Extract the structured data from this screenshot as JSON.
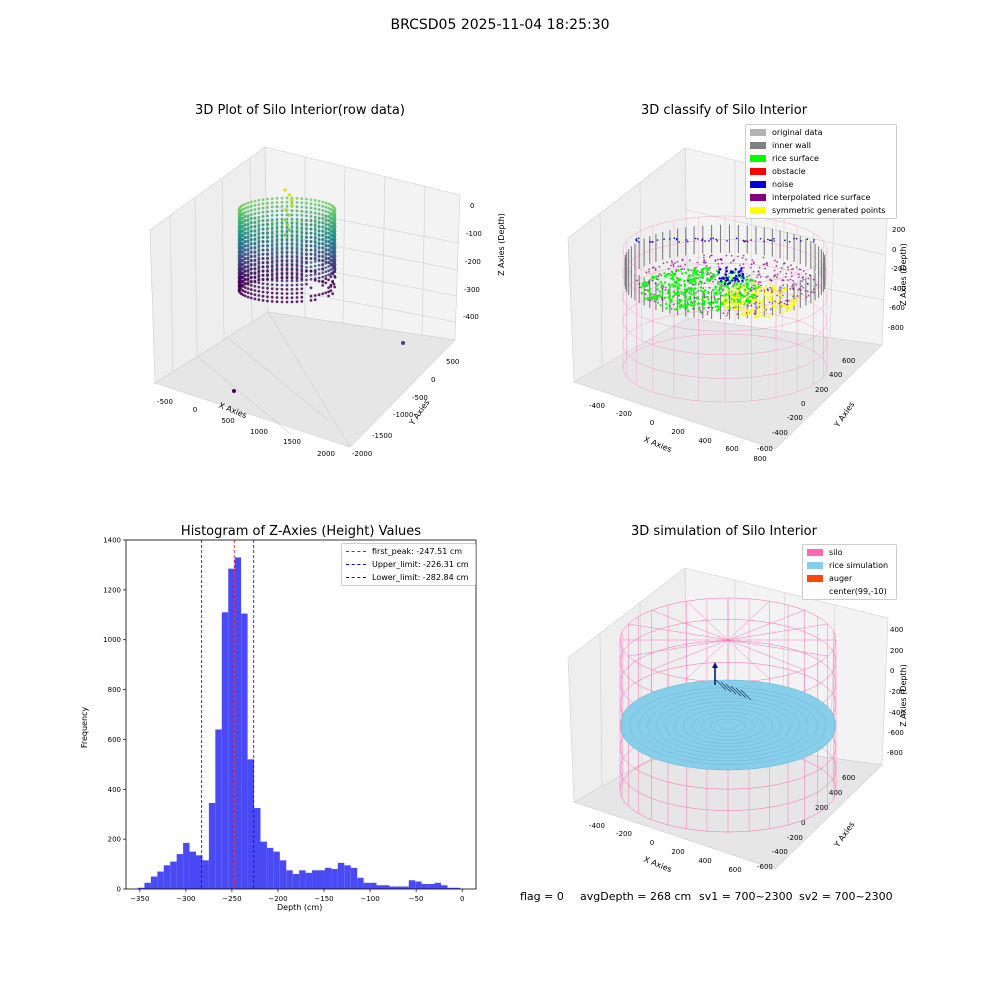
{
  "suptitle": "BRCSD05 2025-11-04 18:25:30",
  "colors": {
    "original": "#b3b3b3",
    "inner_wall": "#808080",
    "rice_surface": "#00ff00",
    "obstacle": "#ff0000",
    "noise": "#0000dd",
    "interpolated": "#800080",
    "symmetric": "#ffff00",
    "silo": "#ff69b4",
    "rice_sim": "#87ceeb",
    "auger": "#ff4500",
    "hist_bar": "#4a4af5"
  },
  "chart_data": [
    {
      "type": "scatter",
      "title": "3D Plot of Silo Interior(row data)",
      "xlabel": "X Axies",
      "ylabel": "Y Axies",
      "zlabel": "Z Axies (Depth)",
      "xticks": [
        "-500",
        "0",
        "500",
        "1000",
        "1500",
        "2000"
      ],
      "yticks": [
        "500",
        "0",
        "-500",
        "-1000",
        "-1500",
        "-2000"
      ],
      "zticks": [
        "0",
        "-100",
        "-200",
        "-300",
        "-400"
      ],
      "colormap": "viridis"
    },
    {
      "type": "scatter",
      "title": "3D classify of Silo Interior",
      "xlabel": "X Axies",
      "ylabel": "Y Axies",
      "zlabel": "Z Axies (Depth)",
      "xticks": [
        "-400",
        "-200",
        "0",
        "200",
        "400",
        "600",
        "800"
      ],
      "yticks": [
        "600",
        "400",
        "200",
        "0",
        "-200",
        "-400",
        "-600"
      ],
      "zticks": [
        "200",
        "0",
        "-200",
        "-400",
        "-600",
        "-800"
      ],
      "legend": [
        "original data",
        "inner wall",
        "rice surface",
        "obstacle",
        "noise",
        "interpolated rice surface",
        "symmetric generated points"
      ],
      "legend_placement": "top-right"
    },
    {
      "type": "bar",
      "title": "Histogram of Z-Axies (Height) Values",
      "xlabel": "Depth (cm)",
      "ylabel": "Frequency",
      "xlim": [
        -365,
        15
      ],
      "ylim": [
        0,
        1400
      ],
      "xticks": [
        -350,
        -300,
        -250,
        -200,
        -150,
        -100,
        -50,
        0
      ],
      "yticks": [
        0,
        200,
        400,
        600,
        800,
        1000,
        1200,
        1400
      ],
      "bin_start": -352,
      "bin_width": 7,
      "values": [
        5,
        25,
        50,
        70,
        95,
        110,
        140,
        185,
        150,
        135,
        115,
        345,
        640,
        1110,
        1285,
        1330,
        1105,
        520,
        325,
        190,
        165,
        150,
        115,
        75,
        60,
        75,
        65,
        75,
        75,
        85,
        80,
        105,
        95,
        85,
        45,
        25,
        25,
        15,
        15,
        10,
        10,
        10,
        35,
        30,
        20,
        20,
        25,
        15,
        5,
        5
      ],
      "lines": [
        {
          "label": "first_peak: -247.51 cm",
          "x": -247.51,
          "color": "#ff0000"
        },
        {
          "label": "Upper_limit: -226.31 cm",
          "x": -226.31,
          "color": "#0000ff"
        },
        {
          "label": "Lower_limit: -282.84 cm",
          "x": -282.84,
          "color": "#0000ff"
        }
      ],
      "legend_placement": "top-right"
    },
    {
      "type": "scatter",
      "title": "3D simulation of Silo Interior",
      "xlabel": "X Axies",
      "ylabel": "Y Axies",
      "zlabel": "Z Axies (Depth)",
      "xticks": [
        "-400",
        "-200",
        "0",
        "200",
        "400",
        "600"
      ],
      "yticks": [
        "600",
        "400",
        "200",
        "0",
        "-200",
        "-400",
        "-600"
      ],
      "zticks": [
        "400",
        "200",
        "0",
        "-200",
        "-400",
        "-600",
        "-800"
      ],
      "legend": [
        "silo",
        "rice simulation",
        "auger",
        "center(99,-10)"
      ],
      "legend_placement": "top-right"
    }
  ],
  "footer": {
    "flag": "flag = 0",
    "avg": "avgDepth = 268 cm",
    "sv1": "sv1 = 700~2300",
    "sv2": "sv2 = 700~2300"
  }
}
